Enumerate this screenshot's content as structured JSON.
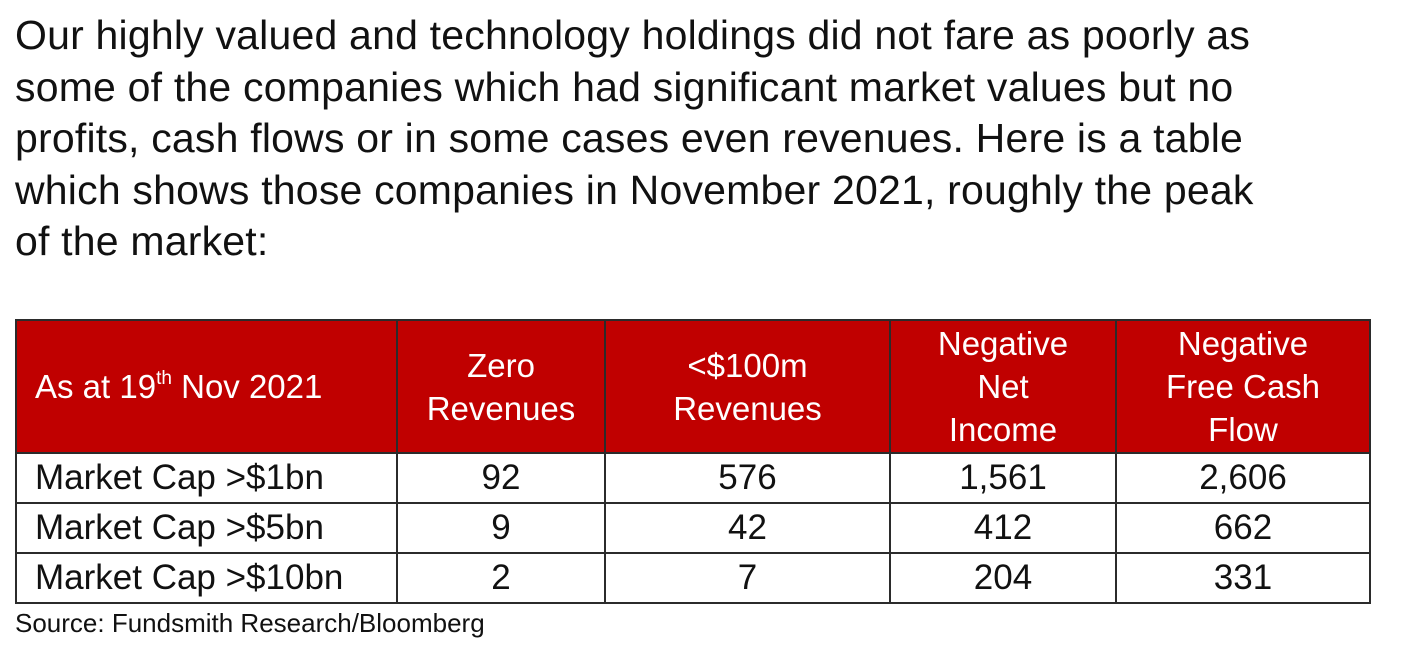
{
  "intro": {
    "lines": [
      "Our highly valued and technology holdings did not fare as poorly as",
      "some of the companies which had significant market values but no",
      "profits, cash flows or in some cases even revenues. Here is a table",
      "which shows those companies in November 2021, roughly the peak",
      "of the market:"
    ]
  },
  "table": {
    "corner_label_prefix": "As at 19",
    "corner_label_superscript": "th",
    "corner_label_suffix": " Nov 2021",
    "header_color": "#c00000",
    "columns": [
      {
        "lines": [
          "Zero",
          "Revenues"
        ]
      },
      {
        "lines": [
          "<$100m",
          "Revenues"
        ]
      },
      {
        "lines": [
          "Negative",
          "Net",
          "Income"
        ]
      },
      {
        "lines": [
          "Negative",
          "Free Cash",
          "Flow"
        ]
      }
    ],
    "rows": [
      {
        "label": "Market Cap >$1bn",
        "values": [
          "92",
          "576",
          "1,561",
          "2,606"
        ]
      },
      {
        "label": "Market Cap >$5bn",
        "values": [
          "9",
          "42",
          "412",
          "662"
        ]
      },
      {
        "label": "Market Cap >$10bn",
        "values": [
          "2",
          "7",
          "204",
          "331"
        ]
      }
    ]
  },
  "source": "Source: Fundsmith Research/Bloomberg"
}
